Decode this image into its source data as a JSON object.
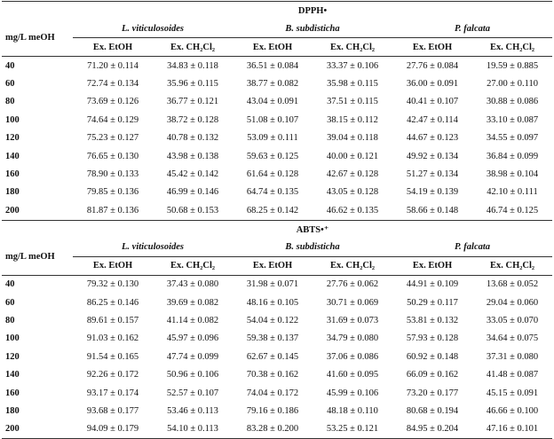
{
  "sections": [
    {
      "title": "DPPH•",
      "row_header": "mg/L meOH",
      "groups": [
        "L. viticulosoides",
        "B. subdisticha",
        "P. falcata"
      ],
      "subheaders": [
        "Ex. EtOH",
        "Ex. CH₂Cl₂",
        "Ex. EtOH",
        "Ex. CH₂Cl₂",
        "Ex. EtOH",
        "Ex. CH₂Cl₂"
      ],
      "rows": [
        [
          "40",
          "71.20 ± 0.114",
          "34.83 ± 0.118",
          "36.51 ± 0.084",
          "33.37 ± 0.106",
          "27.76 ± 0.084",
          "19.59 ± 0.885"
        ],
        [
          "60",
          "72.74 ± 0.134",
          "35.96 ± 0.115",
          "38.77 ± 0.082",
          "35.98 ± 0.115",
          "36.00 ± 0.091",
          "27.00 ± 0.110"
        ],
        [
          "80",
          "73.69 ± 0.126",
          "36.77 ± 0.121",
          "43.04 ± 0.091",
          "37.51 ± 0.115",
          "40.41 ± 0.107",
          "30.88 ± 0.086"
        ],
        [
          "100",
          "74.64 ± 0.129",
          "38.72 ± 0.128",
          "51.08 ± 0.107",
          "38.15 ± 0.112",
          "42.47 ± 0.114",
          "33.10 ± 0.087"
        ],
        [
          "120",
          "75.23 ± 0.127",
          "40.78 ± 0.132",
          "53.09 ± 0.111",
          "39.04 ± 0.118",
          "44.67 ± 0.123",
          "34.55 ± 0.097"
        ],
        [
          "140",
          "76.65 ± 0.130",
          "43.98 ± 0.138",
          "59.63 ± 0.125",
          "40.00 ± 0.121",
          "49.92 ± 0.134",
          "36.84 ± 0.099"
        ],
        [
          "160",
          "78.90 ± 0.133",
          "45.42 ± 0.142",
          "61.64 ± 0.128",
          "42.67 ± 0.128",
          "51.27 ± 0.134",
          "38.98 ± 0.104"
        ],
        [
          "180",
          "79.85 ± 0.136",
          "46.99 ± 0.146",
          "64.74 ± 0.135",
          "43.05 ± 0.128",
          "54.19 ± 0.139",
          "42.10 ± 0.111"
        ],
        [
          "200",
          "81.87 ± 0.136",
          "50.68 ± 0.153",
          "68.25 ± 0.142",
          "46.62 ± 0.135",
          "58.66 ± 0.148",
          "46.74 ± 0.125"
        ]
      ]
    },
    {
      "title": "ABTS•⁺",
      "row_header": "mg/L meOH",
      "groups": [
        "L. viticulosoides",
        "B. subdisticha",
        "P. falcata"
      ],
      "subheaders": [
        "Ex. EtOH",
        "Ex. CH₂Cl₂",
        "Ex. EtOH",
        "Ex. CH₂Cl₂",
        "Ex. EtOH",
        "Ex. CH₂Cl₂"
      ],
      "rows": [
        [
          "40",
          "79.32 ± 0.130",
          "37.43 ± 0.080",
          "31.98 ± 0.071",
          "27.76 ± 0.062",
          "44.91 ± 0.109",
          "13.68 ± 0.052"
        ],
        [
          "60",
          "86.25 ± 0.146",
          "39.69 ± 0.082",
          "48.16 ± 0.105",
          "30.71 ± 0.069",
          "50.29 ± 0.117",
          "29.04 ± 0.060"
        ],
        [
          "80",
          "89.61 ± 0.157",
          "41.14 ± 0.082",
          "54.04 ± 0.122",
          "31.69 ± 0.073",
          "53.81 ± 0.132",
          "33.05 ± 0.070"
        ],
        [
          "100",
          "91.03 ± 0.162",
          "45.97 ± 0.096",
          "59.38 ± 0.137",
          "34.79 ± 0.080",
          "57.93 ± 0.128",
          "34.64 ± 0.075"
        ],
        [
          "120",
          "91.54 ± 0.165",
          "47.74 ± 0.099",
          "62.67 ± 0.145",
          "37.06 ± 0.086",
          "60.92 ± 0.148",
          "37.31 ± 0.080"
        ],
        [
          "140",
          "92.26 ± 0.172",
          "50.96 ± 0.106",
          "70.38 ± 0.162",
          "41.60 ± 0.095",
          "66.09 ± 0.162",
          "41.48 ± 0.087"
        ],
        [
          "160",
          "93.17 ± 0.174",
          "52.57 ± 0.107",
          "74.04 ± 0.172",
          "45.99 ± 0.106",
          "73.20 ± 0.177",
          "45.15 ± 0.091"
        ],
        [
          "180",
          "93.68 ± 0.177",
          "53.46 ± 0.113",
          "79.16 ± 0.186",
          "48.18 ± 0.110",
          "80.68 ± 0.194",
          "46.66 ± 0.100"
        ],
        [
          "200",
          "94.09 ± 0.179",
          "54.10 ± 0.113",
          "83.28 ± 0.200",
          "53.25 ± 0.121",
          "84.95 ± 0.204",
          "47.16 ± 0.101"
        ]
      ]
    }
  ]
}
